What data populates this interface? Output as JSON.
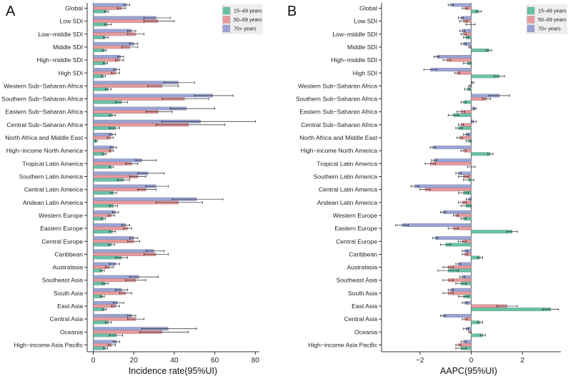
{
  "colors": {
    "c15": "#66C2A5",
    "c50": "#E8999C",
    "c70": "#9AA3D6",
    "legend_bg": "#EEEEEE"
  },
  "legend": [
    "15–49 years",
    "50–69 years",
    "70+ years"
  ],
  "regions": [
    "Global",
    "Low SDI",
    "Low−middle SDI",
    "Middle SDI",
    "High−middle SDI",
    "High SDI",
    "Western Sub−Saharan Africa",
    "Southern Sub−Saharan Africa",
    "Eastern Sub−Saharan Africa",
    "Central Sub−Saharan Africa",
    "North Africa and Middle East",
    "High−income North America",
    "Tropical Latin America",
    "Southern Latin America",
    "Central Latin America",
    "Andean Latin America",
    "Western Europe",
    "Eastern Europe",
    "Central Europe",
    "Caribbean",
    "Australasia",
    "Southeast Asia",
    "South Asia",
    "East Asia",
    "Central Asia",
    "Oceania",
    "High−income Asia Pacific"
  ],
  "chart_data": [
    {
      "type": "bar",
      "orientation": "horizontal",
      "panel_label": "A",
      "xlabel": "Incidence rate(95%UI)",
      "xlim": [
        -3,
        82
      ],
      "xticks": [
        0,
        20,
        40,
        60,
        80
      ],
      "series": [
        {
          "name": "15–49 years",
          "values": [
            6.5,
            7,
            6,
            5.5,
            6,
            5,
            7.5,
            14,
            9.5,
            11,
            1.5,
            5.5,
            9,
            15,
            10,
            10,
            5,
            9.5,
            9,
            14,
            4.5,
            6,
            4.5,
            5.5,
            7.5,
            11.5,
            6
          ],
          "lo": [
            5.5,
            5.5,
            5,
            4.5,
            5,
            4,
            6,
            11,
            8,
            8,
            1,
            4.5,
            8,
            12,
            8.5,
            8,
            4,
            8,
            7.5,
            11,
            3.5,
            4.5,
            3.5,
            4.5,
            6,
            8,
            5
          ],
          "hi": [
            7.5,
            9,
            7.5,
            6.5,
            7,
            6,
            9,
            17,
            11,
            13,
            2,
            6.5,
            10,
            18,
            11.5,
            12,
            6,
            11,
            10.5,
            17,
            5.5,
            7.5,
            5.5,
            6.5,
            9,
            14.5,
            7
          ]
        },
        {
          "name": "50–69 years",
          "values": [
            14,
            32,
            21,
            18,
            13,
            11,
            34,
            45,
            32,
            47,
            8.5,
            9,
            19,
            22,
            26,
            42,
            9,
            17,
            20,
            31,
            8,
            21,
            16,
            11,
            21,
            34,
            9
          ],
          "lo": [
            12,
            25,
            17,
            14,
            11,
            9,
            27,
            34,
            26,
            31,
            7,
            8,
            16,
            18,
            22,
            31,
            7.5,
            15,
            17,
            25,
            6,
            16,
            13,
            9,
            17,
            23,
            7.5
          ],
          "hi": [
            16,
            40,
            25,
            22,
            15,
            13,
            42,
            57,
            39,
            65,
            10,
            10,
            22,
            26,
            31,
            54,
            10.5,
            19,
            23,
            37,
            10,
            26,
            19,
            13,
            25,
            47,
            11
          ]
        },
        {
          "name": "70+ years",
          "values": [
            16.5,
            31,
            19,
            20,
            13.5,
            11.5,
            42,
            59,
            46,
            53,
            9.5,
            10,
            24,
            27,
            31,
            51,
            11,
            16,
            20,
            30,
            11,
            22.5,
            14,
            12,
            19,
            37,
            11.5
          ],
          "lo": [
            15,
            25,
            17,
            18,
            12,
            10,
            35,
            50,
            38,
            34,
            8,
            8.5,
            21,
            22,
            26,
            39,
            9.5,
            14,
            18,
            26,
            8,
            18,
            11,
            10,
            17,
            24,
            10
          ],
          "hi": [
            18,
            38,
            21,
            22,
            15,
            13,
            50,
            69,
            60,
            80,
            11,
            11.5,
            31,
            35,
            37,
            64,
            12.5,
            18,
            22,
            35,
            13,
            32,
            17,
            15,
            21,
            51,
            13
          ]
        }
      ]
    },
    {
      "type": "bar",
      "orientation": "horizontal",
      "panel_label": "B",
      "xlabel": "AAPC(95%UI)",
      "xlim": [
        -3.5,
        3.5
      ],
      "xticks": [
        -2,
        0,
        2
      ],
      "series": [
        {
          "name": "15–49 years",
          "values": [
            0.3,
            -0.02,
            -0.2,
            0.7,
            -0.15,
            1.1,
            -0.15,
            -0.3,
            -0.7,
            -0.5,
            -0.1,
            0.75,
            0.0,
            -0.1,
            -0.3,
            -0.2,
            -0.3,
            1.6,
            -1.0,
            0.35,
            -0.9,
            -0.4,
            -0.3,
            3.1,
            0.35,
            0.45,
            -0.4
          ],
          "lo": [
            0.2,
            -0.2,
            -0.3,
            0.6,
            -0.3,
            0.9,
            -0.25,
            -0.4,
            -0.9,
            -0.6,
            -0.2,
            0.65,
            -0.15,
            -0.3,
            -0.5,
            -0.4,
            -0.4,
            1.4,
            -1.2,
            0.25,
            -1.3,
            -0.6,
            -0.5,
            2.8,
            0.25,
            0.35,
            -0.6
          ],
          "hi": [
            0.4,
            0.15,
            -0.1,
            0.8,
            0.0,
            1.3,
            -0.05,
            -0.2,
            -0.5,
            -0.35,
            0.0,
            0.85,
            0.15,
            0.1,
            -0.1,
            0.0,
            -0.2,
            1.8,
            -0.8,
            0.45,
            -0.5,
            -0.2,
            -0.1,
            3.4,
            0.45,
            0.55,
            -0.2
          ]
        },
        {
          "name": "50–69 years",
          "values": [
            -0.25,
            -0.3,
            -0.3,
            -0.05,
            -0.95,
            -0.55,
            -0.05,
            0.6,
            -0.4,
            -0.4,
            -0.45,
            -0.3,
            -1.6,
            -0.3,
            -1.8,
            -0.35,
            -0.6,
            -0.7,
            -0.35,
            -0.25,
            -0.9,
            -0.9,
            -0.9,
            1.4,
            -0.25,
            -0.05,
            -0.5
          ],
          "lo": [
            -0.35,
            -0.45,
            -0.4,
            -0.1,
            -1.1,
            -0.65,
            -0.1,
            0.45,
            -0.55,
            -0.5,
            -0.55,
            -0.4,
            -1.8,
            -0.5,
            -2.0,
            -0.5,
            -0.7,
            -0.9,
            -0.5,
            -0.35,
            -1.1,
            -1.1,
            -1.1,
            1.0,
            -0.35,
            -0.1,
            -0.6
          ],
          "hi": [
            -0.15,
            -0.15,
            -0.2,
            0.0,
            -0.8,
            -0.45,
            0.0,
            0.75,
            -0.25,
            -0.3,
            -0.35,
            -0.2,
            -1.4,
            -0.1,
            -1.6,
            -0.2,
            -0.5,
            -0.5,
            -0.2,
            -0.15,
            -0.7,
            -0.7,
            -0.7,
            1.8,
            -0.15,
            0.0,
            -0.4
          ]
        },
        {
          "name": "70+ years",
          "values": [
            -0.8,
            -0.4,
            -0.35,
            -0.3,
            -1.35,
            -1.6,
            0.05,
            1.1,
            0.15,
            0.1,
            -0.2,
            -1.5,
            -1.45,
            -0.5,
            -2.2,
            -0.1,
            -1.1,
            -2.7,
            -1.4,
            -0.25,
            -0.5,
            -0.35,
            -0.8,
            -0.25,
            -1.1,
            -0.2,
            -0.3
          ],
          "lo": [
            -0.9,
            -0.5,
            -0.45,
            -0.4,
            -1.45,
            -1.85,
            0.0,
            0.7,
            0.1,
            0.0,
            -0.3,
            -1.6,
            -1.55,
            -0.6,
            -2.35,
            -0.2,
            -1.2,
            -2.95,
            -1.5,
            -0.35,
            -0.6,
            -0.45,
            -0.9,
            -0.35,
            -1.2,
            -0.3,
            -0.4
          ],
          "hi": [
            -0.7,
            -0.3,
            -0.25,
            -0.2,
            -1.25,
            -1.35,
            0.1,
            1.5,
            0.2,
            0.2,
            -0.1,
            -1.4,
            -1.35,
            -0.4,
            -2.05,
            0.0,
            -1.0,
            -2.45,
            -1.3,
            -0.15,
            -0.4,
            -0.25,
            -0.7,
            -0.15,
            -1.0,
            -0.1,
            -0.2
          ]
        }
      ]
    }
  ]
}
